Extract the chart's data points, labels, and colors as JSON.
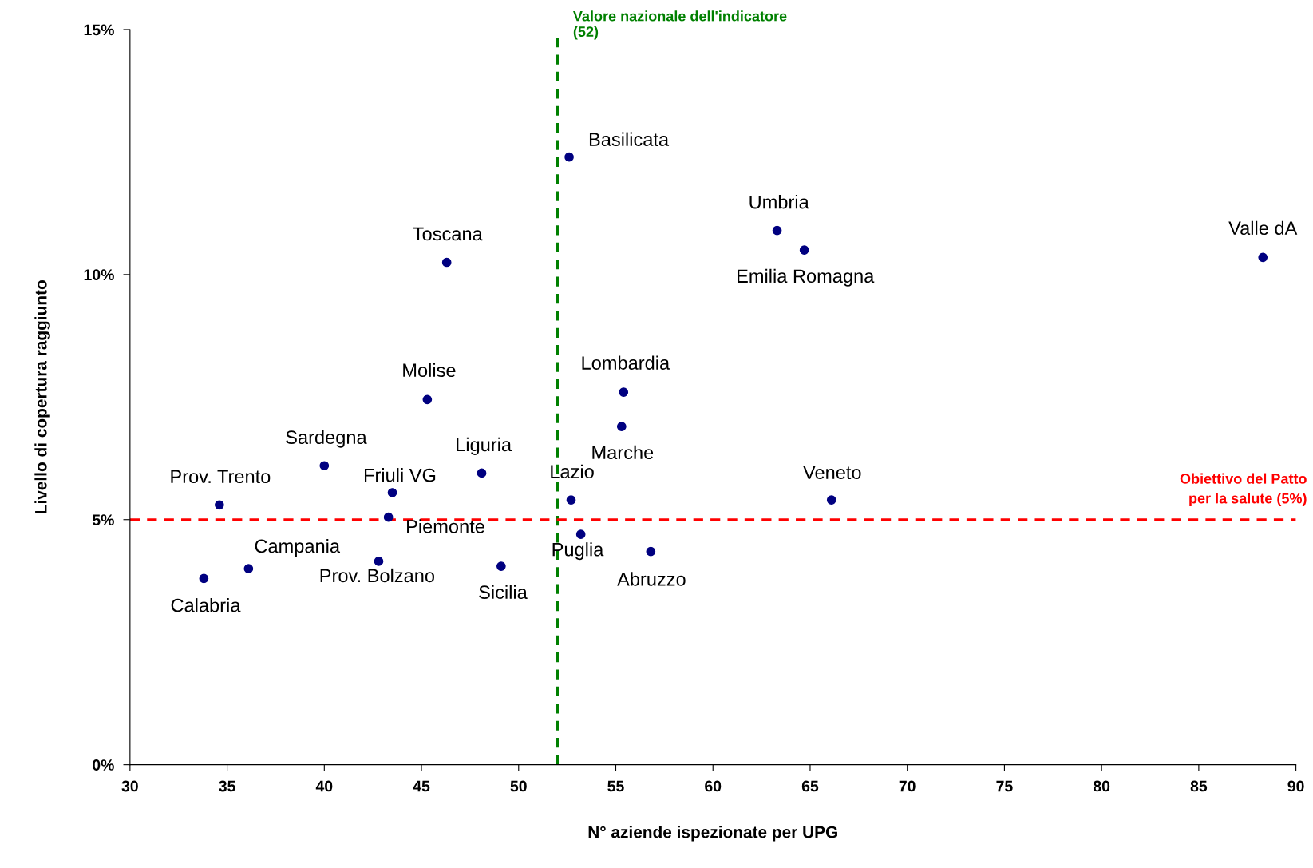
{
  "chart_data": {
    "type": "scatter",
    "xlabel": "N° aziende ispezionate per UPG",
    "ylabel": "Livello di copertura raggiunto",
    "x": [
      52.6,
      63.3,
      64.7,
      88.3,
      46.3,
      55.4,
      55.3,
      45.3,
      40.0,
      48.1,
      43.5,
      34.6,
      43.3,
      52.7,
      66.1,
      53.2,
      56.8,
      49.1,
      42.8,
      36.1,
      33.8
    ],
    "series": [
      {
        "color": "#000080",
        "values": [
          12.4,
          10.9,
          10.5,
          10.35,
          10.25,
          7.6,
          6.9,
          7.45,
          6.1,
          5.95,
          5.55,
          5.3,
          5.05,
          5.4,
          5.4,
          4.7,
          4.35,
          4.05,
          4.15,
          4.0,
          3.8
        ]
      }
    ],
    "annotations": [
      {
        "text": "Basilicata",
        "x": 52.6,
        "y": 12.4
      },
      {
        "text": "Umbria",
        "x": 63.3,
        "y": 10.9
      },
      {
        "text": "Emilia Romagna",
        "x": 64.7,
        "y": 10.5
      },
      {
        "text": "Valle dA",
        "x": 88.3,
        "y": 10.35
      },
      {
        "text": "Toscana",
        "x": 46.3,
        "y": 10.25
      },
      {
        "text": "Lombardia",
        "x": 55.4,
        "y": 7.6
      },
      {
        "text": "Marche",
        "x": 55.3,
        "y": 6.9
      },
      {
        "text": "Molise",
        "x": 45.3,
        "y": 7.45
      },
      {
        "text": "Sardegna",
        "x": 40.0,
        "y": 6.1
      },
      {
        "text": "Liguria",
        "x": 48.1,
        "y": 5.95
      },
      {
        "text": "Friuli VG",
        "x": 43.5,
        "y": 5.55
      },
      {
        "text": "Prov. Trento",
        "x": 34.6,
        "y": 5.3
      },
      {
        "text": "Piemonte",
        "x": 43.3,
        "y": 5.05
      },
      {
        "text": "Lazio",
        "x": 52.7,
        "y": 5.4
      },
      {
        "text": "Veneto",
        "x": 66.1,
        "y": 5.4
      },
      {
        "text": "Puglia",
        "x": 53.2,
        "y": 4.7
      },
      {
        "text": "Abruzzo",
        "x": 56.8,
        "y": 4.35
      },
      {
        "text": "Sicilia",
        "x": 49.1,
        "y": 4.05
      },
      {
        "text": "Prov. Bolzano",
        "x": 42.8,
        "y": 4.15
      },
      {
        "text": "Campania",
        "x": 36.1,
        "y": 4.0
      },
      {
        "text": "Calabria",
        "x": 33.8,
        "y": 3.8
      }
    ],
    "ref_lines": [
      {
        "axis": "x",
        "value": 52,
        "label": "Valore nazionale dell'indicatore\n(52)",
        "color": "#008000",
        "line_style": "dashed"
      },
      {
        "axis": "y",
        "value": 5,
        "label": "Obiettivo del Patto\nper la salute (5%)",
        "color": "#ff0000",
        "line_style": "dashed"
      }
    ],
    "xlim": [
      30,
      90
    ],
    "xticks": [
      30,
      35,
      40,
      45,
      50,
      55,
      60,
      65,
      70,
      75,
      80,
      85,
      90
    ],
    "ylim": [
      0,
      15
    ],
    "yticks": [
      {
        "value": 0,
        "label": "0%"
      },
      {
        "value": 5,
        "label": "5%"
      },
      {
        "value": 10,
        "label": "10%"
      },
      {
        "value": 15,
        "label": "15%"
      }
    ],
    "marker": "circle",
    "grid": false,
    "legend": false
  }
}
